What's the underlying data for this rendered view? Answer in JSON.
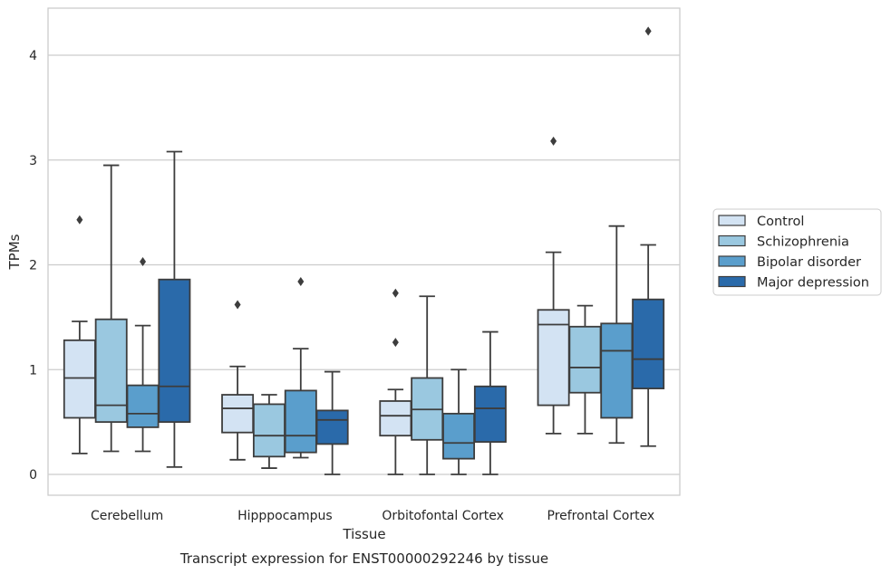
{
  "chart_data": {
    "type": "box",
    "title": "",
    "caption": "Transcript expression for ENST00000292246 by tissue",
    "xlabel": "Tissue",
    "ylabel": "TPMs",
    "ylim": [
      -0.2,
      4.5
    ],
    "yticks": [
      "0",
      "1",
      "2",
      "3",
      "4"
    ],
    "grid": "horizontal",
    "legend_position": "right",
    "categories": [
      "Cerebellum",
      "Hipppocampus",
      "Orbitofontal Cortex",
      "Prefrontal Cortex"
    ],
    "series": [
      {
        "name": "Control",
        "color": "#d3e3f3",
        "boxes": [
          {
            "whislo": 0.2,
            "q1": 0.54,
            "med": 0.92,
            "q3": 1.28,
            "whishi": 1.46,
            "fliers": [
              2.43
            ]
          },
          {
            "whislo": 0.14,
            "q1": 0.4,
            "med": 0.63,
            "q3": 0.76,
            "whishi": 1.03,
            "fliers": [
              1.62
            ]
          },
          {
            "whislo": 0.0,
            "q1": 0.37,
            "med": 0.56,
            "q3": 0.7,
            "whishi": 0.81,
            "fliers": [
              1.26,
              1.73
            ]
          },
          {
            "whislo": 0.39,
            "q1": 0.66,
            "med": 1.43,
            "q3": 1.57,
            "whishi": 2.12,
            "fliers": [
              3.18
            ]
          }
        ]
      },
      {
        "name": "Schizophrenia",
        "color": "#9ac8e0",
        "boxes": [
          {
            "whislo": 0.22,
            "q1": 0.5,
            "med": 0.66,
            "q3": 1.48,
            "whishi": 2.95,
            "fliers": []
          },
          {
            "whislo": 0.06,
            "q1": 0.17,
            "med": 0.37,
            "q3": 0.67,
            "whishi": 0.76,
            "fliers": []
          },
          {
            "whislo": 0.0,
            "q1": 0.33,
            "med": 0.62,
            "q3": 0.92,
            "whishi": 1.7,
            "fliers": []
          },
          {
            "whislo": 0.39,
            "q1": 0.78,
            "med": 1.02,
            "q3": 1.41,
            "whishi": 1.61,
            "fliers": []
          }
        ]
      },
      {
        "name": "Bipolar disorder",
        "color": "#5a9ecc",
        "boxes": [
          {
            "whislo": 0.22,
            "q1": 0.45,
            "med": 0.58,
            "q3": 0.85,
            "whishi": 1.42,
            "fliers": [
              2.03
            ]
          },
          {
            "whislo": 0.16,
            "q1": 0.21,
            "med": 0.37,
            "q3": 0.8,
            "whishi": 1.2,
            "fliers": [
              1.84
            ]
          },
          {
            "whislo": 0.0,
            "q1": 0.15,
            "med": 0.3,
            "q3": 0.58,
            "whishi": 1.0,
            "fliers": []
          },
          {
            "whislo": 0.3,
            "q1": 0.54,
            "med": 1.18,
            "q3": 1.44,
            "whishi": 2.37,
            "fliers": []
          }
        ]
      },
      {
        "name": "Major depression",
        "color": "#2a6aaa",
        "boxes": [
          {
            "whislo": 0.07,
            "q1": 0.5,
            "med": 0.84,
            "q3": 1.86,
            "whishi": 3.08,
            "fliers": []
          },
          {
            "whislo": 0.0,
            "q1": 0.29,
            "med": 0.52,
            "q3": 0.61,
            "whishi": 0.98,
            "fliers": []
          },
          {
            "whislo": 0.0,
            "q1": 0.31,
            "med": 0.63,
            "q3": 0.84,
            "whishi": 1.36,
            "fliers": []
          },
          {
            "whislo": 0.27,
            "q1": 0.82,
            "med": 1.1,
            "q3": 1.67,
            "whishi": 2.19,
            "fliers": [
              4.23
            ]
          }
        ]
      }
    ]
  }
}
